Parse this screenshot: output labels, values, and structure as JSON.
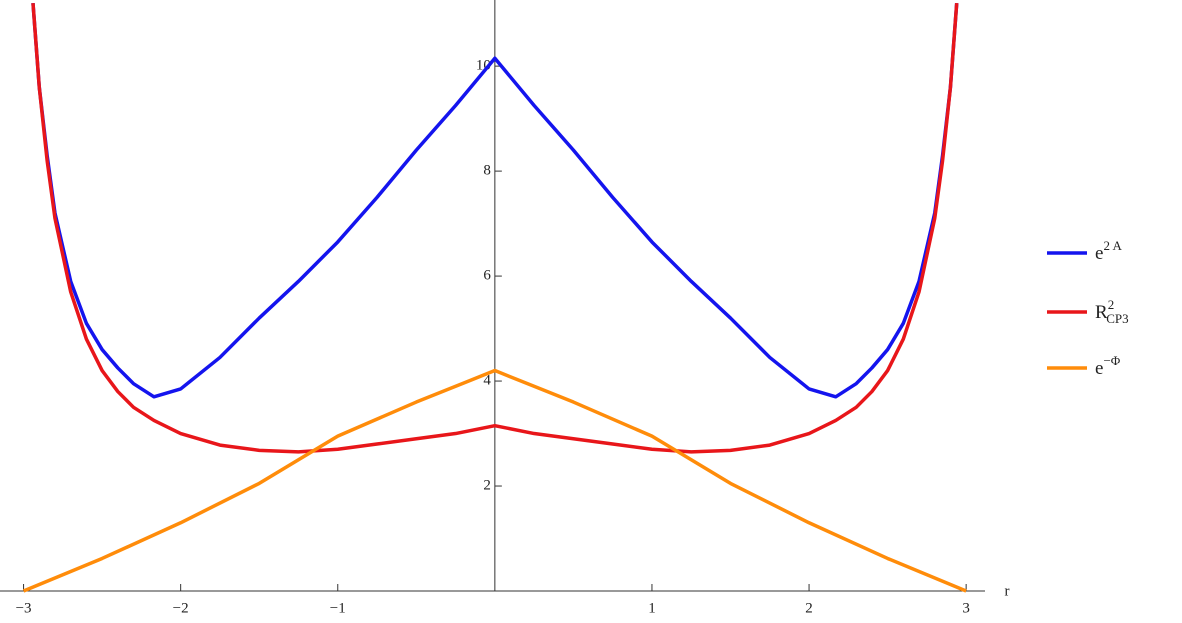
{
  "chart_data": {
    "type": "line",
    "x_label": "r",
    "xlim": [
      -3.15,
      3.12
    ],
    "ylim": [
      0,
      11.26
    ],
    "xticks": [
      {
        "value": -3,
        "label": "−3"
      },
      {
        "value": -2,
        "label": "−2"
      },
      {
        "value": -1,
        "label": "−1"
      },
      1,
      2,
      3
    ],
    "yticks": [
      2,
      4,
      6,
      8,
      10
    ],
    "series": [
      {
        "name": {
          "base": "e",
          "sup": "2 A"
        },
        "color": "#1414ee",
        "x": [
          -2.94,
          -2.9,
          -2.85,
          -2.8,
          -2.7,
          -2.6,
          -2.5,
          -2.4,
          -2.3,
          -2.17,
          -2.0,
          -1.75,
          -1.5,
          -1.25,
          -1.0,
          -0.75,
          -0.5,
          -0.25,
          0,
          0.25,
          0.5,
          0.75,
          1.0,
          1.25,
          1.5,
          1.75,
          2.0,
          2.17,
          2.3,
          2.4,
          2.5,
          2.6,
          2.7,
          2.8,
          2.85,
          2.9,
          2.94
        ],
        "values": [
          11.2,
          9.6,
          8.3,
          7.2,
          5.9,
          5.1,
          4.6,
          4.25,
          3.95,
          3.7,
          3.85,
          4.45,
          5.2,
          5.9,
          6.65,
          7.5,
          8.4,
          9.25,
          10.15,
          9.25,
          8.4,
          7.5,
          6.65,
          5.9,
          5.2,
          4.45,
          3.85,
          3.7,
          3.95,
          4.25,
          4.6,
          5.1,
          5.9,
          7.2,
          8.3,
          9.6,
          11.2
        ]
      },
      {
        "name": {
          "base": "R",
          "sup": "2",
          "sub": "CP3"
        },
        "color": "#e8161a",
        "x": [
          -2.94,
          -2.9,
          -2.85,
          -2.8,
          -2.7,
          -2.6,
          -2.5,
          -2.4,
          -2.3,
          -2.17,
          -2.0,
          -1.75,
          -1.5,
          -1.25,
          -1.0,
          -0.75,
          -0.5,
          -0.25,
          0,
          0.25,
          0.5,
          0.75,
          1.0,
          1.25,
          1.5,
          1.75,
          2.0,
          2.17,
          2.3,
          2.4,
          2.5,
          2.6,
          2.7,
          2.8,
          2.85,
          2.9,
          2.94
        ],
        "values": [
          11.2,
          9.6,
          8.2,
          7.1,
          5.7,
          4.8,
          4.2,
          3.8,
          3.5,
          3.25,
          3.0,
          2.78,
          2.68,
          2.65,
          2.7,
          2.8,
          2.9,
          3.0,
          3.15,
          3.0,
          2.9,
          2.8,
          2.7,
          2.65,
          2.68,
          2.78,
          3.0,
          3.25,
          3.5,
          3.8,
          4.2,
          4.8,
          5.7,
          7.1,
          8.2,
          9.6,
          11.2
        ]
      },
      {
        "name": {
          "base": "e",
          "sup": "−Φ"
        },
        "color": "#ff8c0a",
        "x": [
          -3,
          -2.5,
          -2,
          -1.5,
          -1,
          -0.5,
          0,
          0.5,
          1,
          1.5,
          2,
          2.5,
          3
        ],
        "values": [
          0,
          0.62,
          1.3,
          2.05,
          2.95,
          3.6,
          4.2,
          3.6,
          2.95,
          2.05,
          1.3,
          0.62,
          0
        ]
      }
    ]
  }
}
